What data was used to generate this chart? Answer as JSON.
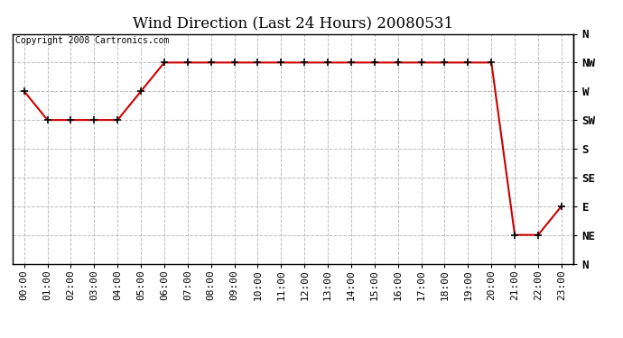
{
  "title": "Wind Direction (Last 24 Hours) 20080531",
  "copyright_text": "Copyright 2008 Cartronics.com",
  "x_labels": [
    "00:00",
    "01:00",
    "02:00",
    "03:00",
    "04:00",
    "05:00",
    "06:00",
    "07:00",
    "08:00",
    "09:00",
    "10:00",
    "11:00",
    "12:00",
    "13:00",
    "14:00",
    "15:00",
    "16:00",
    "17:00",
    "18:00",
    "19:00",
    "20:00",
    "21:00",
    "22:00",
    "23:00"
  ],
  "y_labels": [
    "N",
    "NW",
    "W",
    "SW",
    "S",
    "SE",
    "E",
    "NE",
    "N"
  ],
  "y_values": [
    360,
    315,
    270,
    225,
    180,
    135,
    90,
    45,
    0
  ],
  "wind_data": [
    270,
    225,
    225,
    225,
    225,
    270,
    315,
    315,
    315,
    315,
    315,
    315,
    315,
    315,
    315,
    315,
    315,
    315,
    315,
    315,
    315,
    45,
    45,
    90
  ],
  "line_color": "#cc0000",
  "marker": "+",
  "marker_color": "#000000",
  "marker_size": 6,
  "marker_linewidth": 1.2,
  "line_width": 1.5,
  "bg_color": "#ffffff",
  "plot_bg_color": "#ffffff",
  "grid_color": "#bbbbbb",
  "grid_style": "--",
  "title_fontsize": 12,
  "axis_fontsize": 8,
  "copyright_fontsize": 7,
  "border_color": "#000000"
}
